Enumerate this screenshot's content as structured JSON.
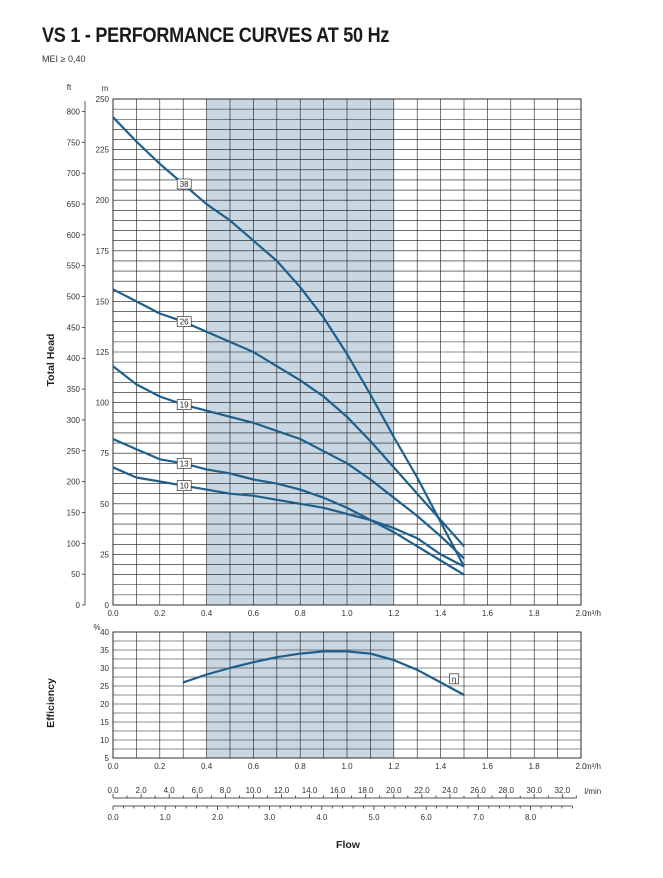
{
  "header": {
    "title": "VS 1 - PERFORMANCE CURVES AT 50 Hz",
    "subtitle": "MEI ≥ 0,40"
  },
  "colors": {
    "curve": "#1f5f8b",
    "band": "#c9d7e2",
    "grid": "#1a1a1a"
  },
  "chart_data": [
    {
      "type": "line",
      "name": "head",
      "ylabel": "Total Head",
      "xunit": "m³/h",
      "yunit_left": "ft",
      "yunit_right": "m",
      "xlim": [
        0,
        2.0
      ],
      "ylim_m": [
        0,
        250
      ],
      "x_ticks": [
        "0.0",
        "0.2",
        "0.4",
        "0.6",
        "0.8",
        "1.0",
        "1.2",
        "1.4",
        "1.6",
        "1.8",
        "2.0"
      ],
      "y_ticks_m": [
        "0",
        "25",
        "50",
        "75",
        "100",
        "125",
        "150",
        "175",
        "200",
        "225",
        "250"
      ],
      "y_ticks_ft": [
        "0",
        "50",
        "100",
        "150",
        "200",
        "250",
        "300",
        "350",
        "400",
        "450",
        "500",
        "550",
        "600",
        "650",
        "700",
        "750",
        "800"
      ],
      "highlight_range": [
        0.4,
        1.2
      ],
      "series": [
        {
          "name": "38",
          "label_at": 0.3,
          "x": [
            0,
            0.1,
            0.2,
            0.3,
            0.4,
            0.5,
            0.6,
            0.7,
            0.8,
            0.9,
            1.0,
            1.1,
            1.2,
            1.3,
            1.4,
            1.5
          ],
          "y": [
            241,
            229,
            218,
            208,
            198,
            190,
            180,
            170,
            157,
            142,
            124,
            104,
            83,
            63,
            41,
            19
          ]
        },
        {
          "name": "26",
          "label_at": 0.3,
          "x": [
            0,
            0.1,
            0.2,
            0.3,
            0.4,
            0.5,
            0.6,
            0.7,
            0.8,
            0.9,
            1.0,
            1.1,
            1.2,
            1.3,
            1.4,
            1.5
          ],
          "y": [
            156,
            150,
            144,
            140,
            135,
            130,
            125,
            118,
            111,
            103,
            93,
            81,
            68,
            55,
            42,
            29
          ]
        },
        {
          "name": "19",
          "label_at": 0.3,
          "x": [
            0,
            0.1,
            0.2,
            0.3,
            0.4,
            0.5,
            0.6,
            0.7,
            0.8,
            0.9,
            1.0,
            1.1,
            1.2,
            1.3,
            1.4,
            1.5
          ],
          "y": [
            118,
            109,
            103,
            99,
            96,
            93,
            90,
            86,
            82,
            76,
            70,
            62,
            53,
            44,
            34,
            23
          ]
        },
        {
          "name": "13",
          "label_at": 0.3,
          "x": [
            0,
            0.1,
            0.2,
            0.3,
            0.4,
            0.5,
            0.6,
            0.7,
            0.8,
            0.9,
            1.0,
            1.1,
            1.2,
            1.3,
            1.4,
            1.5
          ],
          "y": [
            82,
            77,
            72,
            70,
            67,
            65,
            62,
            60,
            57,
            53,
            48,
            42,
            36,
            29,
            22,
            15
          ]
        },
        {
          "name": "10",
          "label_at": 0.3,
          "x": [
            0,
            0.1,
            0.2,
            0.3,
            0.4,
            0.5,
            0.6,
            0.7,
            0.8,
            0.9,
            1.0,
            1.1,
            1.2,
            1.3,
            1.4,
            1.5
          ],
          "y": [
            68,
            63,
            61,
            59,
            57,
            55,
            54,
            52,
            50,
            48,
            45,
            42,
            38,
            33,
            25,
            19
          ]
        }
      ]
    },
    {
      "type": "line",
      "name": "efficiency",
      "ylabel": "Efficiency",
      "xunit": "m³/h",
      "yunit": "%",
      "xlim": [
        0,
        2.0
      ],
      "ylim": [
        5,
        40
      ],
      "x_ticks": [
        "0.0",
        "0.2",
        "0.4",
        "0.6",
        "0.8",
        "1.0",
        "1.2",
        "1.4",
        "1.6",
        "1.8",
        "2.0"
      ],
      "y_ticks": [
        "5",
        "10",
        "15",
        "20",
        "25",
        "30",
        "35",
        "40"
      ],
      "highlight_range": [
        0.4,
        1.2
      ],
      "series": [
        {
          "name": "η",
          "x": [
            0.3,
            0.4,
            0.5,
            0.6,
            0.7,
            0.8,
            0.9,
            1.0,
            1.1,
            1.2,
            1.3,
            1.4,
            1.5
          ],
          "y": [
            26,
            28.2,
            30,
            31.6,
            33,
            34,
            34.6,
            34.6,
            34,
            32.2,
            29.5,
            26,
            22.5
          ]
        }
      ]
    }
  ],
  "flow_axes": {
    "title": "Flow",
    "lmin_unit": "l/min",
    "lmin_ticks": [
      "0.0",
      "2.0",
      "4.0",
      "6.0",
      "8.0",
      "10.0",
      "12.0",
      "14.0",
      "16.0",
      "18.0",
      "20.0",
      "22.0",
      "24.0",
      "26.0",
      "28.0",
      "30.0",
      "32.0"
    ],
    "third_ticks": [
      "0.0",
      "1.0",
      "2.0",
      "3.0",
      "4.0",
      "5.0",
      "6.0",
      "7.0",
      "8.0"
    ]
  }
}
